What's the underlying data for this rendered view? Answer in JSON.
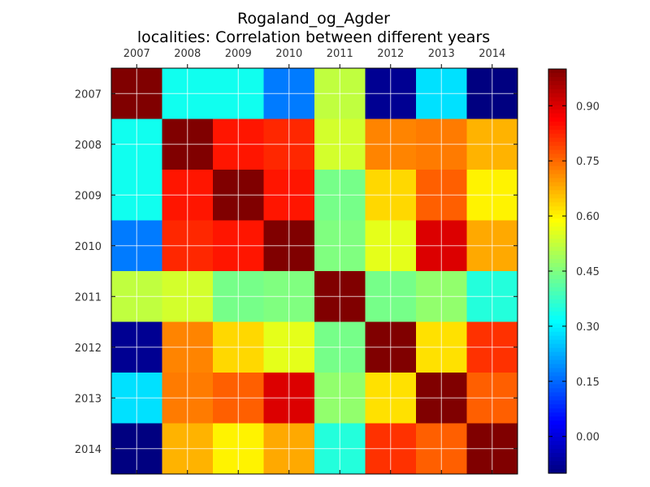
{
  "chart_data": {
    "type": "heatmap",
    "title": "Rogaland_og_Agder",
    "subtitle": "localities: Correlation between different years",
    "x_categories": [
      "2007",
      "2008",
      "2009",
      "2010",
      "2011",
      "2012",
      "2013",
      "2014"
    ],
    "y_categories": [
      "2007",
      "2008",
      "2009",
      "2010",
      "2011",
      "2012",
      "2013",
      "2014"
    ],
    "values": [
      [
        1.0,
        0.33,
        0.33,
        0.17,
        0.52,
        -0.08,
        0.28,
        -0.1
      ],
      [
        0.33,
        1.0,
        0.84,
        0.82,
        0.54,
        0.72,
        0.73,
        0.67
      ],
      [
        0.33,
        0.84,
        1.0,
        0.84,
        0.44,
        0.63,
        0.76,
        0.6
      ],
      [
        0.17,
        0.82,
        0.84,
        1.0,
        0.45,
        0.56,
        0.9,
        0.68
      ],
      [
        0.52,
        0.54,
        0.44,
        0.45,
        1.0,
        0.44,
        0.47,
        0.35
      ],
      [
        -0.08,
        0.72,
        0.63,
        0.56,
        0.44,
        1.0,
        0.62,
        0.81
      ],
      [
        0.28,
        0.73,
        0.76,
        0.9,
        0.47,
        0.62,
        1.0,
        0.76
      ],
      [
        -0.1,
        0.67,
        0.6,
        0.68,
        0.35,
        0.81,
        0.76,
        1.0
      ]
    ],
    "colormap": "jet",
    "vmin": -0.1,
    "vmax": 1.0,
    "colorbar_ticks": [
      "0.00",
      "0.15",
      "0.30",
      "0.45",
      "0.60",
      "0.75",
      "0.90"
    ],
    "colorbar_tick_values": [
      0.0,
      0.15,
      0.3,
      0.45,
      0.6,
      0.75,
      0.9
    ],
    "grid": true,
    "x_ticks_position": "top"
  }
}
